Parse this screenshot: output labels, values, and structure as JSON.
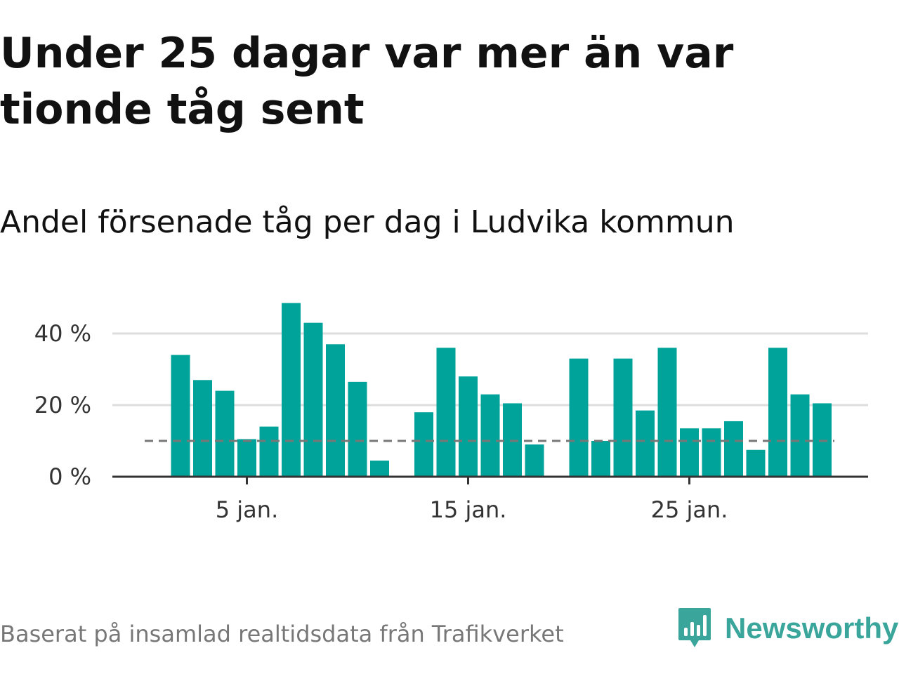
{
  "title": "Under 25 dagar var mer än var tionde tåg sent",
  "subtitle": "Andel försenade tåg per dag i Ludvika kommun",
  "footer": {
    "source": "Baserat på insamlad realtidsdata från Trafikverket",
    "brand": "Newsworthy",
    "brand_icon": "newsworthy-logo-icon"
  },
  "colors": {
    "bar": "#00a39a",
    "reference_line": "#777777",
    "grid": "#dddddd",
    "axis": "#333333",
    "brand": "#3aa69b"
  },
  "chart_data": {
    "type": "bar",
    "title": "Andel försenade tåg per dag i Ludvika kommun",
    "xlabel": "",
    "ylabel": "",
    "x_unit": "day of January",
    "ylim": [
      0,
      48
    ],
    "y_ticks": [
      {
        "value": 0,
        "label": "0 %"
      },
      {
        "value": 20,
        "label": "20 %"
      },
      {
        "value": 40,
        "label": "40 %"
      }
    ],
    "x_ticks": [
      {
        "value": 5,
        "label": "5 jan."
      },
      {
        "value": 15,
        "label": "15 jan."
      },
      {
        "value": 25,
        "label": "25 jan."
      }
    ],
    "grid": true,
    "reference_line": {
      "value": 10,
      "style": "dashed"
    },
    "x": [
      2,
      3,
      4,
      5,
      6,
      7,
      8,
      9,
      10,
      11,
      13,
      14,
      15,
      16,
      17,
      18,
      20,
      21,
      22,
      23,
      24,
      25,
      26,
      27,
      28,
      29,
      30,
      31
    ],
    "values": [
      34,
      27,
      24,
      10.5,
      14,
      48.5,
      43,
      37,
      26.5,
      4.5,
      18,
      36,
      28,
      23,
      20.5,
      9,
      33,
      10,
      33,
      18.5,
      36,
      13.5,
      13.5,
      15.5,
      7.5,
      36,
      23,
      20.5
    ]
  }
}
